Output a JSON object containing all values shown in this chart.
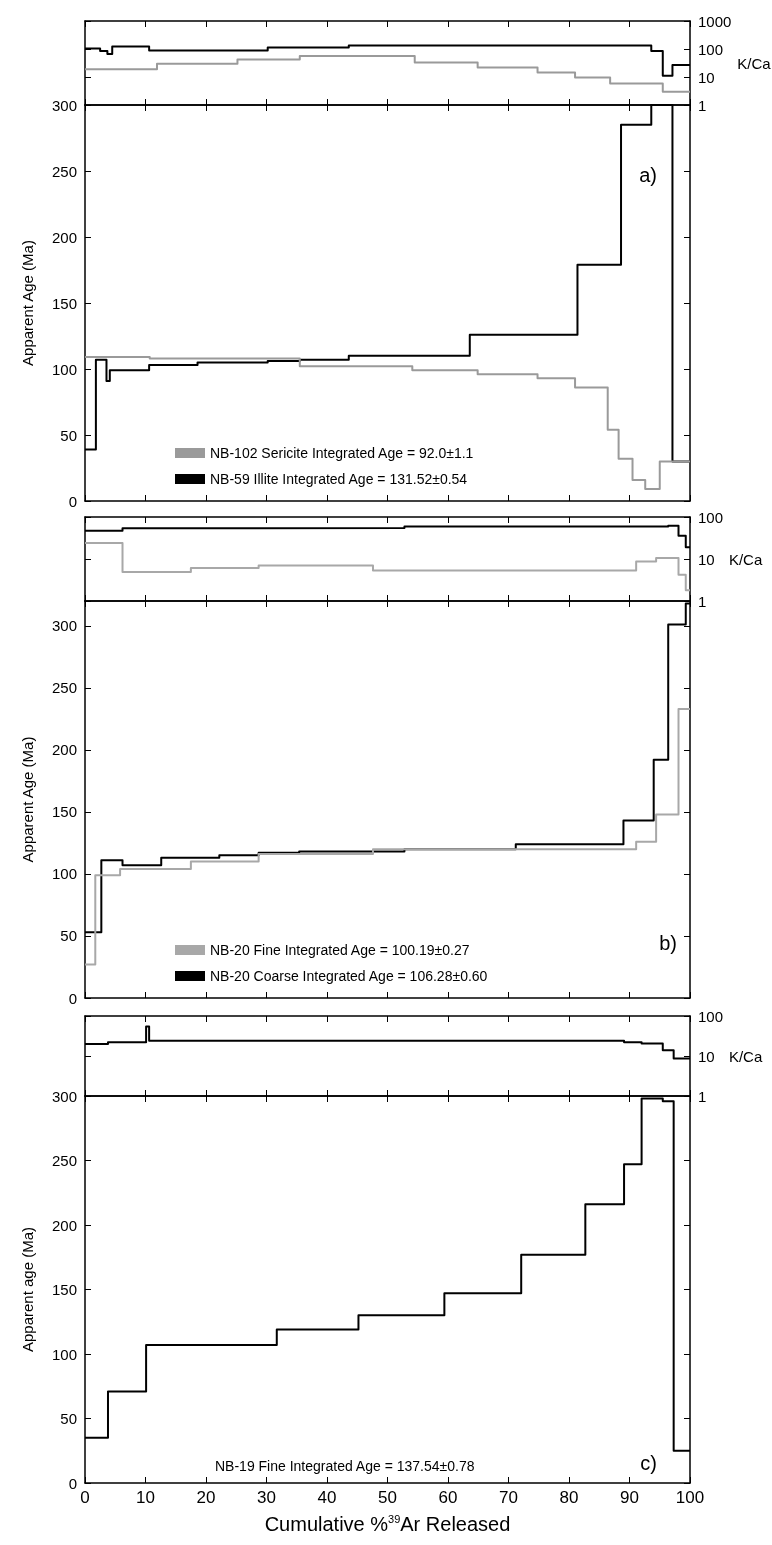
{
  "chart_data": [
    {
      "type": "step",
      "xlim": [
        0,
        100
      ],
      "xticks": [
        0,
        10,
        20,
        30,
        40,
        50,
        60,
        70,
        80,
        90,
        100
      ],
      "y2lim": [
        1,
        1000
      ],
      "y2ticks": [
        1,
        10,
        100,
        1000
      ],
      "y2label": "K/Ca",
      "log": "y2",
      "tick_labels": "y",
      "grid": false,
      "legend": false,
      "series": [
        {
          "color": "#000000",
          "axis": "y2",
          "x": [
            0,
            2.5,
            3.7,
            4.5,
            10.6,
            30.2,
            43.6,
            93.6,
            95.5,
            97.1,
            100
          ],
          "values": [
            105,
            85,
            66,
            123,
            88,
            113,
            133,
            85,
            11,
            27,
            27
          ]
        },
        {
          "color": "#9a9a9a",
          "axis": "y2",
          "x": [
            0,
            11.9,
            25.2,
            35.5,
            54.5,
            64.9,
            74.8,
            81.0,
            86.8,
            95.5,
            100
          ],
          "values": [
            19,
            30,
            42,
            56,
            33,
            22,
            14.5,
            9.6,
            5.9,
            3.0,
            3.0
          ]
        }
      ]
    },
    {
      "type": "step",
      "xlim": [
        0,
        100
      ],
      "xticks": [
        0,
        10,
        20,
        30,
        40,
        50,
        60,
        70,
        80,
        90,
        100
      ],
      "ylim": [
        0,
        300
      ],
      "yticks": [
        0,
        50,
        100,
        150,
        200,
        250,
        300
      ],
      "ylabel": "Apparent Age (Ma)",
      "tick_labels": "y",
      "grid": false,
      "legend": "bottom left",
      "annotations": [
        "a)"
      ],
      "series": [
        {
          "name": "NB-102 Sericite Integrated Age = 92.0±1.1",
          "color": "#9a9a9a",
          "x": [
            0,
            10.7,
            35.5,
            54.1,
            64.9,
            74.8,
            81.0,
            86.4,
            88.2,
            90.5,
            92.6,
            95.0,
            100
          ],
          "values": [
            109,
            108,
            102,
            99,
            96,
            93,
            86,
            54,
            32,
            16,
            9,
            30,
            30
          ]
        },
        {
          "name": "NB-59 Illite Integrated Age = 131.52±0.54",
          "color": "#000000",
          "x": [
            0,
            1.8,
            3.55,
            4.1,
            10.6,
            18.6,
            30.2,
            35.5,
            43.6,
            63.6,
            81.4,
            88.6,
            93.6,
            97.1,
            100
          ],
          "values": [
            39,
            107,
            91,
            99,
            103,
            105,
            106,
            107,
            110,
            126,
            179,
            285,
            300,
            30,
            30
          ]
        }
      ]
    },
    {
      "type": "step",
      "xlim": [
        0,
        100
      ],
      "xticks": [
        0,
        10,
        20,
        30,
        40,
        50,
        60,
        70,
        80,
        90,
        100
      ],
      "y2lim": [
        1,
        100
      ],
      "y2ticks": [
        1,
        10,
        100
      ],
      "y2label": "K/Ca",
      "log": "y2",
      "tick_labels": "y",
      "grid": false,
      "legend": false,
      "series": [
        {
          "color": "#000000",
          "axis": "y2",
          "x": [
            0,
            6.2,
            22.2,
            52.8,
            96.4,
            98.1,
            99.3,
            100
          ],
          "values": [
            47,
            54,
            55,
            59,
            62,
            36,
            19,
            19
          ]
        },
        {
          "color": "#a8a8a8",
          "axis": "y2",
          "x": [
            0,
            6.2,
            17.5,
            28.7,
            47.6,
            91.1,
            94.4,
            98.1,
            99.3,
            100
          ],
          "values": [
            24,
            4.9,
            6.1,
            7,
            5.3,
            8.7,
            10.5,
            4.2,
            1.8,
            1.8
          ]
        }
      ]
    },
    {
      "type": "step",
      "xlim": [
        0,
        100
      ],
      "xticks": [
        0,
        10,
        20,
        30,
        40,
        50,
        60,
        70,
        80,
        90,
        100
      ],
      "ylim": [
        0,
        320
      ],
      "yticks": [
        0,
        50,
        100,
        150,
        200,
        250,
        300
      ],
      "ylabel": "Apparent Age (Ma)",
      "tick_labels": "y",
      "grid": false,
      "legend": "bottom left",
      "annotations": [
        "b)"
      ],
      "series": [
        {
          "name": "NB-20 Fine Integrated Age = 100.19±0.27",
          "color": "#a8a8a8",
          "x": [
            0,
            1.7,
            5.8,
            17.5,
            28.7,
            47.6,
            91.1,
            94.4,
            98.1,
            100
          ],
          "values": [
            27,
            99,
            104,
            110,
            116,
            120,
            126,
            148,
            233,
            233
          ]
        },
        {
          "name": "NB-20 Coarse Integrated Age = 106.28±0.60",
          "color": "#000000",
          "x": [
            0,
            2.7,
            6.2,
            12.6,
            22.2,
            28.7,
            35.4,
            52.8,
            71.2,
            89.0,
            94.0,
            96.4,
            99.3,
            100
          ],
          "values": [
            53,
            111,
            107,
            113,
            115,
            117,
            118,
            120,
            124,
            143,
            192,
            301,
            318,
            318
          ]
        }
      ]
    },
    {
      "type": "step",
      "xlim": [
        0,
        100
      ],
      "xticks": [
        0,
        10,
        20,
        30,
        40,
        50,
        60,
        70,
        80,
        90,
        100
      ],
      "y2lim": [
        1,
        100
      ],
      "y2ticks": [
        1,
        10,
        100
      ],
      "y2label": "K/Ca",
      "log": "y2",
      "tick_labels": "y",
      "grid": false,
      "legend": false,
      "series": [
        {
          "color": "#000000",
          "axis": "y2",
          "x": [
            0,
            3.8,
            10.1,
            10.6,
            89.1,
            92.0,
            95.5,
            97.3,
            100
          ],
          "values": [
            20,
            22,
            55,
            24,
            22,
            20.5,
            14,
            8.7,
            8.7
          ]
        }
      ]
    },
    {
      "type": "step",
      "xlim": [
        0,
        100
      ],
      "xticks": [
        0,
        10,
        20,
        30,
        40,
        50,
        60,
        70,
        80,
        90,
        100
      ],
      "ylim": [
        0,
        300
      ],
      "yticks": [
        0,
        50,
        100,
        150,
        200,
        250,
        300
      ],
      "xlabel": "Cumulative %$^{39}$Ar Released",
      "ylabel": "Apparent age (Ma)",
      "grid": false,
      "legend": false,
      "annotations": [
        "NB-19 Fine Integrated Age = 137.54±0.78",
        "c)"
      ],
      "series": [
        {
          "color": "#000000",
          "x": [
            0,
            3.8,
            10.1,
            31.7,
            45.2,
            59.4,
            72.1,
            82.7,
            89.1,
            92.0,
            95.5,
            97.3,
            100
          ],
          "values": [
            35,
            71,
            107,
            119,
            130,
            147,
            177,
            216,
            247,
            298,
            296,
            25,
            25
          ]
        }
      ]
    }
  ]
}
